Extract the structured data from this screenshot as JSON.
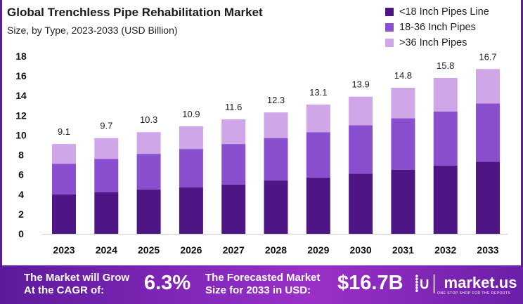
{
  "chart_data": {
    "type": "bar",
    "stacked": true,
    "title": "Global Trenchless Pipe Rehabilitation Market",
    "subtitle": "Size, by Type, 2023-2033 (USD Billion)",
    "xlabel": "",
    "ylabel": "",
    "ylim": [
      0,
      18
    ],
    "yticks": [
      "0",
      "2",
      "4",
      "6",
      "8",
      "10",
      "12",
      "14",
      "16",
      "18"
    ],
    "grid": false,
    "legend_position": "top-right",
    "categories": [
      "2023",
      "2024",
      "2025",
      "2026",
      "2027",
      "2028",
      "2029",
      "2030",
      "2031",
      "2032",
      "2033"
    ],
    "series": [
      {
        "name": "<18 Inch Pipes Line",
        "color": "#4e1585",
        "values": [
          4.0,
          4.2,
          4.5,
          4.7,
          5.0,
          5.4,
          5.7,
          6.1,
          6.5,
          6.9,
          7.3
        ]
      },
      {
        "name": "18-36 Inch Pipes",
        "color": "#8a4fcf",
        "values": [
          3.1,
          3.4,
          3.6,
          3.9,
          4.1,
          4.3,
          4.6,
          4.9,
          5.2,
          5.5,
          5.9
        ]
      },
      {
        "name": ">36 Inch Pipes",
        "color": "#cfa6e8",
        "values": [
          2.0,
          2.1,
          2.2,
          2.3,
          2.5,
          2.6,
          2.8,
          2.9,
          3.1,
          3.4,
          3.5
        ]
      }
    ],
    "totals": [
      "9.1",
      "9.7",
      "10.3",
      "10.9",
      "11.6",
      "12.3",
      "13.1",
      "13.9",
      "14.8",
      "15.8",
      "16.7"
    ]
  },
  "footer": {
    "cagr_label_1": "The Market will Grow",
    "cagr_label_2": "At the CAGR of:",
    "cagr_value": "6.3%",
    "forecast_label_1": "The Forecasted Market",
    "forecast_label_2": "Size for 2033 in USD:",
    "forecast_value": "$16.7B",
    "logo_name": "market.us",
    "logo_tagline": "ONE STOP SHOP FOR THE REPORTS"
  }
}
